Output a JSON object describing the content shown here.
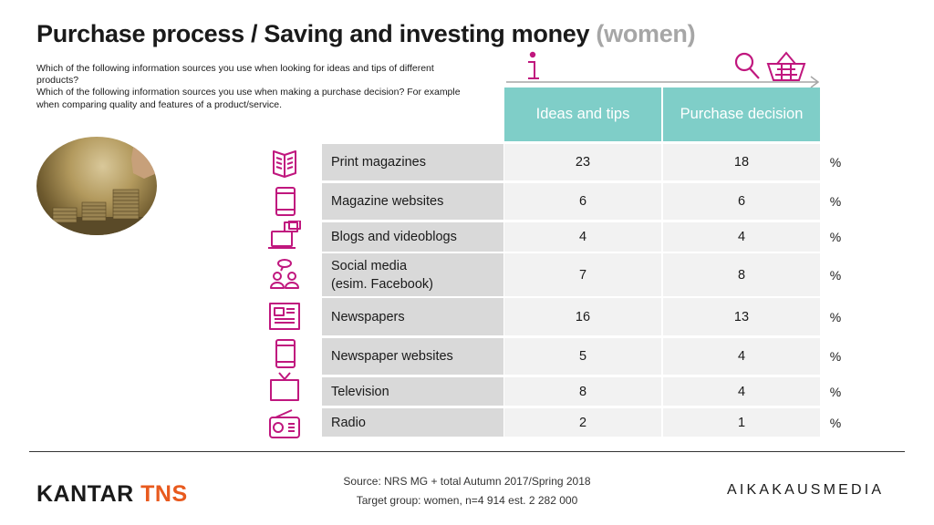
{
  "header": {
    "title": "Purchase process / Saving and investing money",
    "title_sub": "(women)",
    "question_lines": [
      "Which of the following information sources you use when looking for ideas and tips of different products?",
      "Which of the following information sources you use when making a purchase decision? For example when comparing quality and features of a product/service."
    ]
  },
  "chart_data": {
    "type": "table",
    "title": "Purchase process / Saving and investing money (women)",
    "columns": [
      "Ideas and tips",
      "Purchase decision"
    ],
    "unit": "%",
    "rows": [
      {
        "label": "Print magazines",
        "icon": "magazine-icon",
        "ideas": 23,
        "decision": 18
      },
      {
        "label": "Magazine websites",
        "icon": "tablet-icon",
        "ideas": 6,
        "decision": 6
      },
      {
        "label": "Blogs and videoblogs",
        "icon": "laptop-icon",
        "ideas": 4,
        "decision": 4
      },
      {
        "label": "Social media\n(esim. Facebook)",
        "icon": "people-chat-icon",
        "ideas": 7,
        "decision": 8
      },
      {
        "label": "Newspapers",
        "icon": "newspaper-icon",
        "ideas": 16,
        "decision": 13
      },
      {
        "label": "Newspaper websites",
        "icon": "tablet-icon",
        "ideas": 5,
        "decision": 4
      },
      {
        "label": "Television",
        "icon": "tv-icon",
        "ideas": 8,
        "decision": 4
      },
      {
        "label": "Radio",
        "icon": "radio-icon",
        "ideas": 2,
        "decision": 1
      }
    ]
  },
  "footer": {
    "source": "Source: NRS MG + total Autumn 2017/Spring 2018",
    "target": "Target group: women, n=4 914 est. 2 282 000",
    "brand_left_1": "KANTAR",
    "brand_left_2": "TNS",
    "brand_right": "AIKAKAUSMEDIA"
  },
  "colors": {
    "header_bg": "#7fcec8",
    "label_bg": "#d9d9d9",
    "value_bg": "#f2f2f2",
    "icon": "#c0177e",
    "kantar_accent": "#e85a1e"
  }
}
